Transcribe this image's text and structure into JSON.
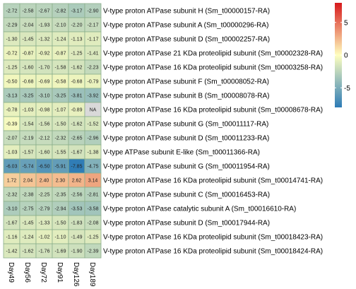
{
  "chart_data": {
    "type": "heatmap",
    "columns": [
      "Day49",
      "Day56",
      "Day72",
      "Day91",
      "Day126",
      "Day189"
    ],
    "rows": [
      "V-type proton ATPase subunit H (Sm_t00000157-RA)",
      "V-type proton ATPase subunit A (Sm_t00000296-RA)",
      "V-type proton ATPase subunit D (Sm_t00002257-RA)",
      "V-type proton ATPase 21 KDa proteolipid subunit (Sm_t00002328-RA)",
      "V-type proton ATPase 16 KDa proteolipid subunit (Sm_t00003258-RA)",
      "V-type proton ATPase subunit F (Sm_t00008052-RA)",
      "V-type proton ATPase subunit B (Sm_t00008078-RA)",
      "V-type proton ATPase 16 KDa proteolipid subunit (Sm_t00008678-RA)",
      "V-type proton ATPase subunit G (Sm_t00011117-RA)",
      "V-type proton ATPase subunit D (Sm_t00011233-RA)",
      "V-type ATPase subunit E-like (Sm_t00011366-RA)",
      "V-type proton ATPase subunit G (Sm_t00011954-RA)",
      "V-type proton ATPase 16 KDa proteolipid subunit (Sm_t00014741-RA)",
      "V-type proton ATPase subunit C (Sm_t00016453-RA)",
      "V-type proton ATPase catalytic subunit A (Sm_t00016610-RA)",
      "V-type proton ATPase subunit D (Sm_t00017944-RA)",
      "V-type proton ATPase 16 KDa proteolipid subunit (Sm_t00018423-RA)",
      "V-type proton ATPase 16 KDa proteolipid subunit (Sm_t00018424-RA)"
    ],
    "values": [
      [
        -2.72,
        -2.58,
        -2.67,
        -2.82,
        -3.17,
        -2.9
      ],
      [
        -2.29,
        -2.04,
        -1.93,
        -2.1,
        -2.2,
        -2.17
      ],
      [
        -1.3,
        -1.45,
        -1.32,
        -1.24,
        -1.13,
        -1.17
      ],
      [
        -0.72,
        -0.87,
        -0.92,
        -0.87,
        -1.25,
        -1.41
      ],
      [
        -1.25,
        -1.6,
        -1.7,
        -1.58,
        -1.62,
        -2.23
      ],
      [
        -0.5,
        -0.68,
        -0.69,
        -0.58,
        -0.68,
        -0.79
      ],
      [
        -3.13,
        -3.25,
        -3.1,
        -3.25,
        -3.81,
        -3.92
      ],
      [
        -0.78,
        -1.03,
        -0.98,
        -1.07,
        -0.89,
        null
      ],
      [
        -0.39,
        -1.54,
        -1.56,
        -1.5,
        -1.62,
        -1.52
      ],
      [
        -2.07,
        -2.19,
        -2.12,
        -2.32,
        -2.65,
        -2.96
      ],
      [
        -1.03,
        -1.57,
        -1.6,
        -1.55,
        -1.67,
        -1.38
      ],
      [
        -6.03,
        -5.74,
        -6.5,
        -5.91,
        -7.85,
        -4.75
      ],
      [
        1.72,
        2.04,
        2.4,
        2.3,
        2.62,
        3.14
      ],
      [
        -2.32,
        -2.38,
        -2.25,
        -2.35,
        -2.56,
        -2.81
      ],
      [
        -3.1,
        -2.75,
        -2.79,
        -2.94,
        -3.53,
        -3.58
      ],
      [
        -1.67,
        -1.45,
        -1.33,
        -1.5,
        -1.83,
        -2.08
      ],
      [
        -1.16,
        -1.24,
        -1.02,
        -1.1,
        -1.49,
        -1.25
      ],
      [
        -1.42,
        -1.62,
        -1.76,
        -1.69,
        -1.9,
        -2.39
      ]
    ],
    "na_label": "NA",
    "na_color": "#d9d9d9",
    "color_scale": {
      "min": -8,
      "max": 8,
      "low": "#2c7bb6",
      "mid": "#ffffbf",
      "high": "#d7191c"
    },
    "legend": {
      "placement": "right",
      "ticks": [
        5,
        0,
        -5
      ]
    },
    "cell_border_color": "#8cb08c"
  }
}
